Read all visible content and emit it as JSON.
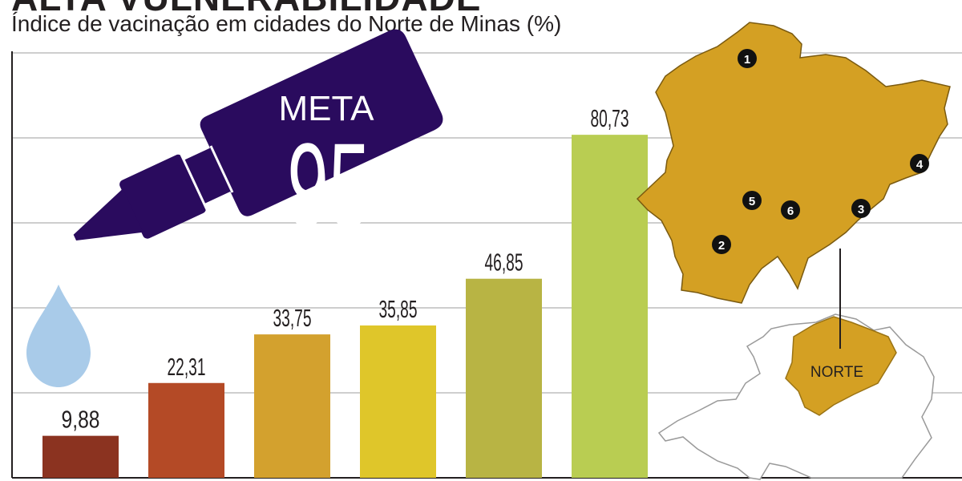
{
  "header": {
    "title": "ALTA VULNERABILIDADE",
    "subtitle": "Índice de vacinação em cidades do Norte de Minas (%)"
  },
  "goal": {
    "label": "META",
    "value": "95"
  },
  "map": {
    "region_label": "NORTE",
    "markers": [
      "1",
      "2",
      "3",
      "4",
      "5",
      "6"
    ]
  },
  "colors": {
    "bottle": "#2a0b5e",
    "drop": "#a9cbe9",
    "map_fill": "#d4a023",
    "grid": "#bdbdbd",
    "text": "#231f20"
  },
  "chart_data": {
    "type": "bar",
    "title": "Índice de vacinação em cidades do Norte de Minas (%)",
    "xlabel": "",
    "ylabel": "",
    "ylim": [
      0,
      100
    ],
    "grid": true,
    "labels": [
      "9,88",
      "22,31",
      "33,75",
      "35,85",
      "46,85",
      "80,73"
    ],
    "values": [
      9.88,
      22.31,
      33.75,
      35.85,
      46.85,
      80.73
    ],
    "colors": [
      "#8b3320",
      "#b44a26",
      "#d3a12e",
      "#dfc62a",
      "#b8b444",
      "#b9cd52"
    ]
  }
}
